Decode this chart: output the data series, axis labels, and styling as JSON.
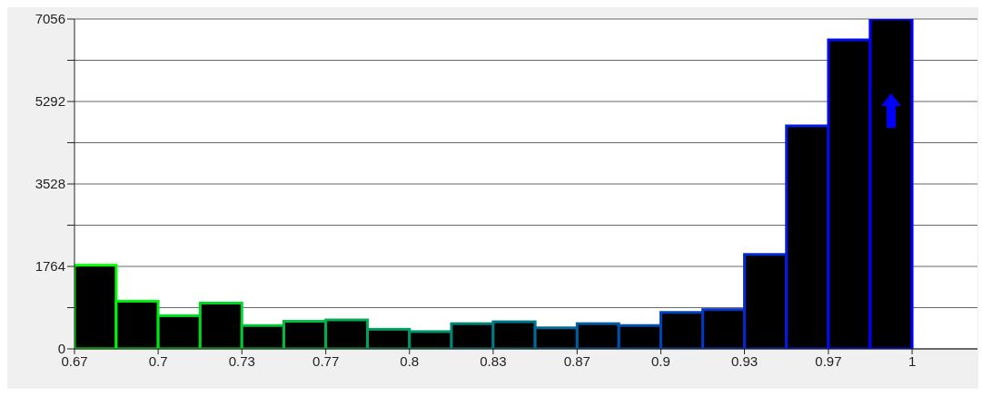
{
  "chart_data": {
    "type": "histogram",
    "bins": [
      0.6667,
      0.6833,
      0.7,
      0.7167,
      0.7333,
      0.75,
      0.7667,
      0.7833,
      0.8,
      0.8167,
      0.8333,
      0.85,
      0.8667,
      0.8833,
      0.9,
      0.9167,
      0.9333,
      0.95,
      0.9667,
      0.9833,
      1.0
    ],
    "values": [
      1790,
      1020,
      710,
      980,
      500,
      590,
      620,
      420,
      370,
      540,
      580,
      450,
      540,
      500,
      780,
      840,
      2020,
      4770,
      6610,
      7056
    ],
    "color": "#000000",
    "colors": [
      "#00ff00",
      "#00f20d",
      "#00e41b",
      "#00d728",
      "#00c936",
      "#00bc43",
      "#00ae51",
      "#00a15e",
      "#00946b",
      "#008679",
      "#007986",
      "#006b94",
      "#005ea1",
      "#0051ae",
      "#0043bc",
      "#0036c9",
      "#0028d7",
      "#001be4",
      "#000df2",
      "#0000ff"
    ],
    "xlim": [
      0.6667,
      1.026
    ],
    "xticks": [
      {
        "value": 0.6667,
        "label": "0.67"
      },
      {
        "value": 0.7,
        "label": "0.7"
      },
      {
        "value": 0.7333,
        "label": "0.73"
      },
      {
        "value": 0.7667,
        "label": "0.77"
      },
      {
        "value": 0.8,
        "label": "0.8"
      },
      {
        "value": 0.8333,
        "label": "0.83"
      },
      {
        "value": 0.8667,
        "label": "0.87"
      },
      {
        "value": 0.9,
        "label": "0.9"
      },
      {
        "value": 0.9333,
        "label": "0.93"
      },
      {
        "value": 0.9667,
        "label": "0.97"
      },
      {
        "value": 1.0,
        "label": "1"
      }
    ],
    "ylim": [
      0,
      7056
    ],
    "yticks": [
      0,
      {
        "value": 882,
        "label": null
      },
      1764,
      {
        "value": 2646,
        "label": null
      },
      3528,
      {
        "value": 4410,
        "label": null
      },
      5292,
      {
        "value": 6174,
        "label": null
      },
      7056
    ],
    "grid": "y"
  }
}
